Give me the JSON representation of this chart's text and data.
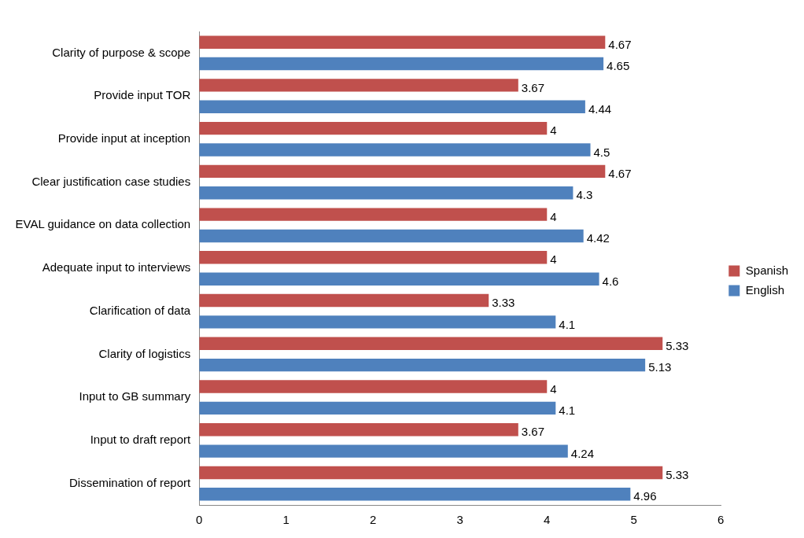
{
  "chart_data": {
    "type": "bar",
    "orientation": "horizontal",
    "categories": [
      "Clarity of purpose & scope",
      "Provide input TOR",
      "Provide input at inception",
      "Clear justification case studies",
      "EVAL guidance on data collection",
      "Adequate input to interviews",
      "Clarification of data",
      "Clarity of logistics",
      "Input to GB summary",
      "Input to draft report",
      "Dissemination of report"
    ],
    "series": [
      {
        "name": "Spanish",
        "color": "#c0504d",
        "values": [
          4.67,
          3.67,
          4,
          4.67,
          4,
          4,
          3.33,
          5.33,
          4,
          3.67,
          5.33
        ]
      },
      {
        "name": "English",
        "color": "#4f81bd",
        "values": [
          4.65,
          4.44,
          4.5,
          4.3,
          4.42,
          4.6,
          4.1,
          5.13,
          4.1,
          4.24,
          4.96
        ]
      }
    ],
    "xlim": [
      0,
      6
    ],
    "xticks": [
      0,
      1,
      2,
      3,
      4,
      5,
      6
    ],
    "grid": false,
    "legend": "right",
    "data_labels": true
  }
}
